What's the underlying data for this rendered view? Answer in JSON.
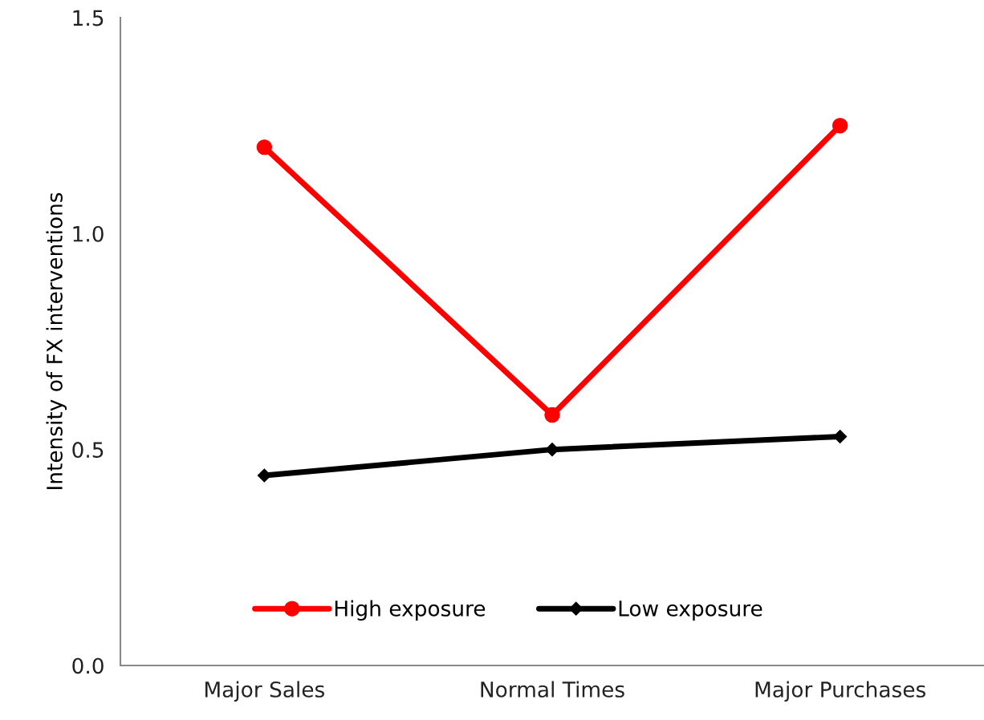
{
  "chart_data": {
    "type": "line",
    "ylabel": "Intensity of FX interventions",
    "categories": [
      "Major Sales",
      "Normal Times",
      "Major Purchases"
    ],
    "series": [
      {
        "name": "High exposure",
        "color": "#ff0000",
        "values": [
          1.2,
          0.58,
          1.25
        ],
        "marker": "circle"
      },
      {
        "name": "Low exposure",
        "color": "#000000",
        "values": [
          0.44,
          0.5,
          0.53
        ],
        "marker": "diamond"
      }
    ],
    "ylim": [
      0,
      1.5
    ],
    "yticks": [
      {
        "value": 0,
        "label": "0.0"
      },
      {
        "value": 0.5,
        "label": "0.5"
      },
      {
        "value": 1,
        "label": "1.0"
      },
      {
        "value": 1.5,
        "label": "1.5"
      }
    ],
    "grid": false,
    "legend": "bottom",
    "line_style": "solid"
  }
}
